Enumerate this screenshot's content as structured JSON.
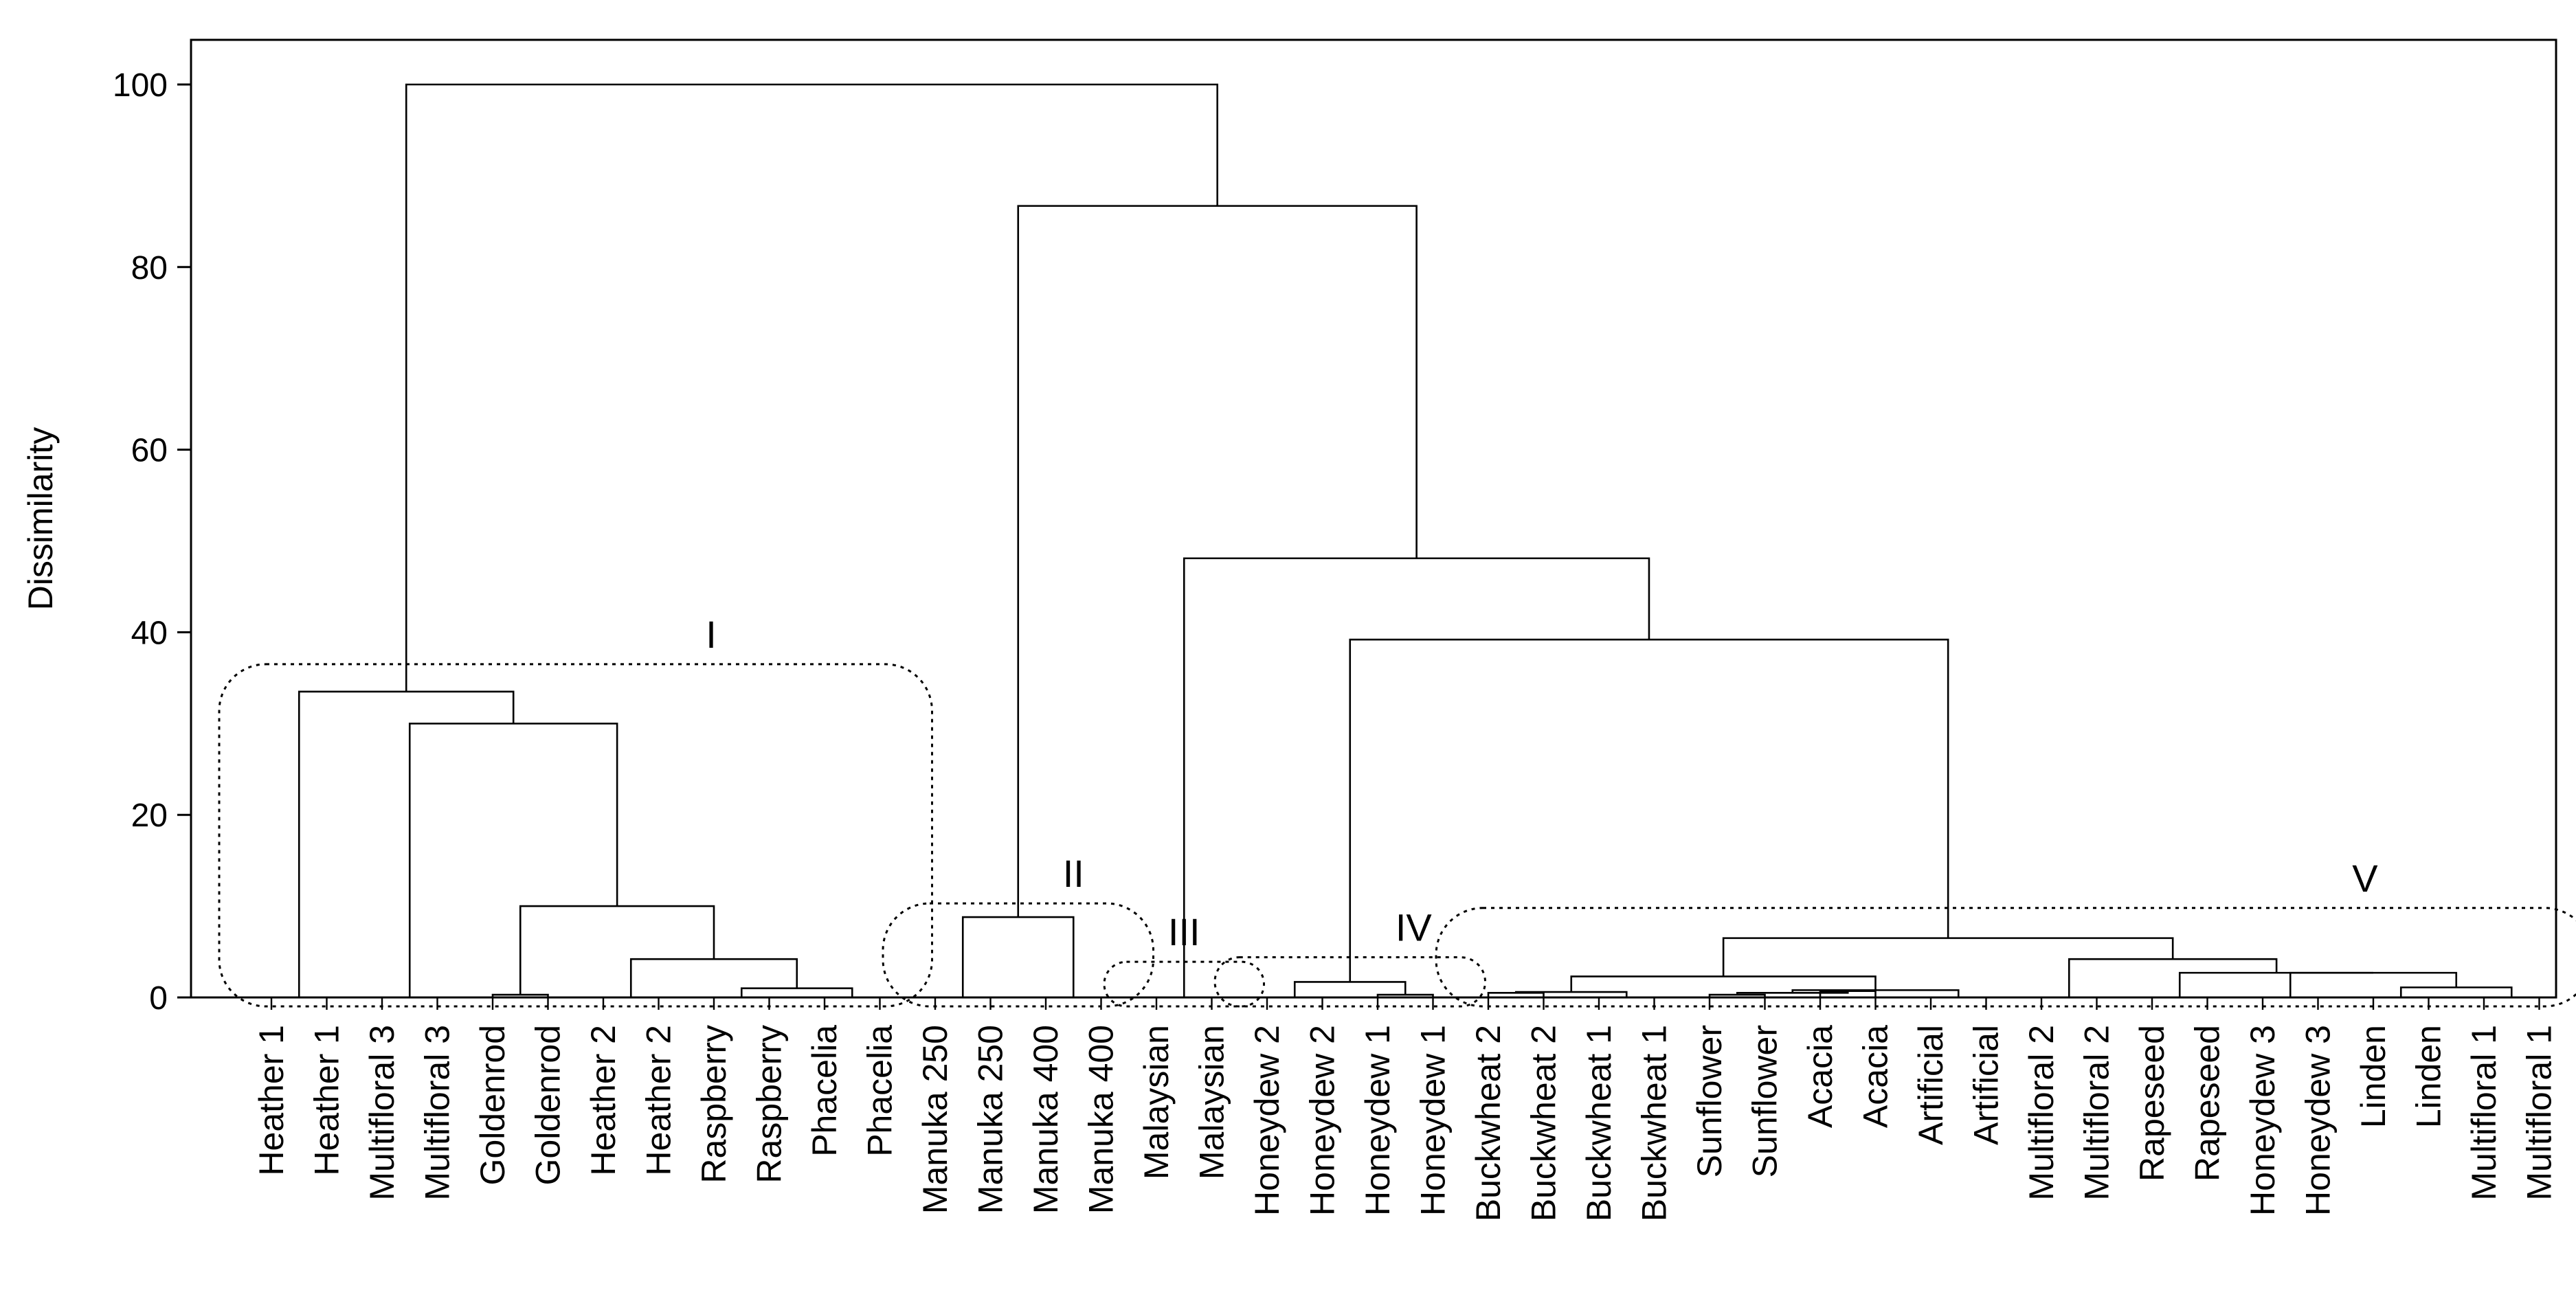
{
  "chart_data": {
    "type": "dendrogram",
    "ylabel": "Dissimilarity",
    "ylim": [
      0,
      100
    ],
    "yticks": [
      0,
      20,
      40,
      60,
      80,
      100
    ],
    "leaves": [
      "Heather 1",
      "Heather 1",
      "Multifloral 3",
      "Multifloral 3",
      "Goldenrod",
      "Goldenrod",
      "Heather 2",
      "Heather 2",
      "Raspberry",
      "Raspberry",
      "Phacelia",
      "Phacelia",
      "Manuka 250",
      "Manuka 250",
      "Manuka 400",
      "Manuka 400",
      "Malaysian",
      "Malaysian",
      "Honeydew 2",
      "Honeydew 2",
      "Honeydew 1",
      "Honeydew 1",
      "Buckwheat 2",
      "Buckwheat 2",
      "Buckwheat 1",
      "Buckwheat 1",
      "Sunflower",
      "Sunflower",
      "Acacia",
      "Acacia",
      "Artificial",
      "Artificial",
      "Multifloral 2",
      "Multifloral 2",
      "Rapeseed",
      "Rapeseed",
      "Honeydew 3",
      "Honeydew 3",
      "Linden",
      "Linden",
      "Multifloral 1",
      "Multifloral 1"
    ],
    "merges": [
      {
        "id": "a1",
        "left": 0,
        "right": 1,
        "height": 0
      },
      {
        "id": "a2",
        "left": 2,
        "right": 3,
        "height": 0
      },
      {
        "id": "a3",
        "left": 4,
        "right": 5,
        "height": 0.3
      },
      {
        "id": "a4",
        "left": 6,
        "right": 7,
        "height": 0
      },
      {
        "id": "a5",
        "left": 8,
        "right": 9,
        "height": 0
      },
      {
        "id": "a6",
        "left": 10,
        "right": 11,
        "height": 0
      },
      {
        "id": "a7",
        "left": "a5",
        "right": "a6",
        "height": 1
      },
      {
        "id": "a8",
        "left": "a4",
        "right": "a7",
        "height": 4.2
      },
      {
        "id": "a9",
        "left": "a3",
        "right": "a8",
        "height": 10
      },
      {
        "id": "a10",
        "left": "a2",
        "right": "a9",
        "height": 30
      },
      {
        "id": "a11",
        "left": "a1",
        "right": "a10",
        "height": 33.5
      },
      {
        "id": "b1",
        "left": 12,
        "right": 13,
        "height": 0
      },
      {
        "id": "b2",
        "left": 14,
        "right": 15,
        "height": 0
      },
      {
        "id": "b3",
        "left": "b1",
        "right": "b2",
        "height": 8.8
      },
      {
        "id": "c1",
        "left": 16,
        "right": 17,
        "height": 0
      },
      {
        "id": "d1",
        "left": 18,
        "right": 19,
        "height": 0
      },
      {
        "id": "d2",
        "left": 20,
        "right": 21,
        "height": 0.3
      },
      {
        "id": "d3",
        "left": "d1",
        "right": "d2",
        "height": 1.7
      },
      {
        "id": "e1",
        "left": 22,
        "right": 23,
        "height": 0.5
      },
      {
        "id": "e2",
        "left": 24,
        "right": 25,
        "height": 0
      },
      {
        "id": "e3",
        "left": "e1",
        "right": "e2",
        "height": 0.6
      },
      {
        "id": "e4",
        "left": 26,
        "right": 27,
        "height": 0.3
      },
      {
        "id": "e5",
        "left": 28,
        "right": 29,
        "height": 0.7
      },
      {
        "id": "e6",
        "left": "e4",
        "right": "e5",
        "height": 0.5
      },
      {
        "id": "e7",
        "left": 30,
        "right": 31,
        "height": 0
      },
      {
        "id": "e8",
        "left": "e6",
        "right": "e7",
        "height": 0.8
      },
      {
        "id": "e9",
        "left": "e3",
        "right": "e8",
        "height": 2.3
      },
      {
        "id": "f1",
        "left": 32,
        "right": 33,
        "height": 0
      },
      {
        "id": "f2",
        "left": 34,
        "right": 35,
        "height": 0
      },
      {
        "id": "f3",
        "left": 36,
        "right": 37,
        "height": 0
      },
      {
        "id": "f4",
        "left": 38,
        "right": 39,
        "height": 0
      },
      {
        "id": "f5",
        "left": 40,
        "right": 41,
        "height": 0
      },
      {
        "id": "f6",
        "left": "f4",
        "right": "f5",
        "height": 1.1
      },
      {
        "id": "f7",
        "left": "f3",
        "right": "f6",
        "height": 2.7
      },
      {
        "id": "f8",
        "left": "f2",
        "right": "f7",
        "height": 2.7
      },
      {
        "id": "f9",
        "left": "f1",
        "right": "f8",
        "height": 4.2
      },
      {
        "id": "f10",
        "left": "e9",
        "right": "f9",
        "height": 6.5
      },
      {
        "id": "g1",
        "left": "d3",
        "right": "f10",
        "height": 39.2
      },
      {
        "id": "g2",
        "left": "c1",
        "right": "g1",
        "height": 48.1
      },
      {
        "id": "g3",
        "left": "b3",
        "right": "g2",
        "height": 86.7
      },
      {
        "id": "root",
        "left": "a11",
        "right": "g3",
        "height": 100
      }
    ],
    "clusters": [
      {
        "label": "I",
        "first_leaf": 0,
        "last_leaf": 11,
        "top": 36.5
      },
      {
        "label": "II",
        "first_leaf": 12,
        "last_leaf": 15,
        "top": 10.3
      },
      {
        "label": "III",
        "first_leaf": 16,
        "last_leaf": 17,
        "top": 3.9
      },
      {
        "label": "IV",
        "first_leaf": 18,
        "last_leaf": 21,
        "top": 4.4
      },
      {
        "label": "V",
        "first_leaf": 22,
        "last_leaf": 41,
        "top": 9.8
      }
    ]
  }
}
